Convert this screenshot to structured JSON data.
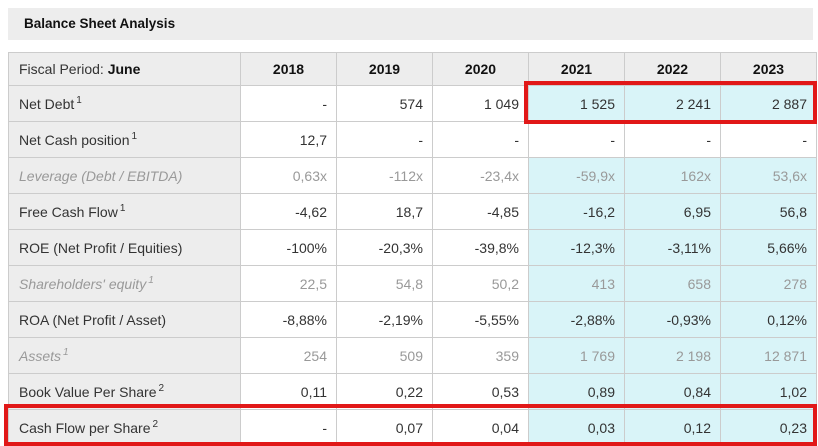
{
  "title": "Balance Sheet Analysis",
  "table": {
    "fiscal_period_label": "Fiscal Period:",
    "fiscal_period_value": "June",
    "columns": [
      "2018",
      "2019",
      "2020",
      "2021",
      "2022",
      "2023"
    ],
    "estimate_columns": [
      "2021",
      "2022",
      "2023"
    ],
    "rows": [
      {
        "label": "Net Debt",
        "sup": "1",
        "italic": false,
        "estimates": true,
        "values": [
          "-",
          "574",
          "1 049",
          "1 525",
          "2 241",
          "2 887"
        ]
      },
      {
        "label": "Net Cash position",
        "sup": "1",
        "italic": false,
        "estimates": false,
        "values": [
          "12,7",
          "-",
          "-",
          "-",
          "-",
          "-"
        ]
      },
      {
        "label": "Leverage (Debt / EBITDA)",
        "sup": "",
        "italic": true,
        "estimates": true,
        "values": [
          "0,63x",
          "-112x",
          "-23,4x",
          "-59,9x",
          "162x",
          "53,6x"
        ]
      },
      {
        "label": "Free Cash Flow",
        "sup": "1",
        "italic": false,
        "estimates": true,
        "values": [
          "-4,62",
          "18,7",
          "-4,85",
          "-16,2",
          "6,95",
          "56,8"
        ]
      },
      {
        "label": "ROE (Net Profit / Equities)",
        "sup": "",
        "italic": false,
        "estimates": true,
        "values": [
          "-100%",
          "-20,3%",
          "-39,8%",
          "-12,3%",
          "-3,11%",
          "5,66%"
        ]
      },
      {
        "label": "Shareholders' equity",
        "sup": "1",
        "italic": true,
        "estimates": true,
        "values": [
          "22,5",
          "54,8",
          "50,2",
          "413",
          "658",
          "278"
        ]
      },
      {
        "label": "ROA (Net Profit / Asset)",
        "sup": "",
        "italic": false,
        "estimates": true,
        "values": [
          "-8,88%",
          "-2,19%",
          "-5,55%",
          "-2,88%",
          "-0,93%",
          "0,12%"
        ]
      },
      {
        "label": "Assets",
        "sup": "1",
        "italic": true,
        "estimates": true,
        "values": [
          "254",
          "509",
          "359",
          "1 769",
          "2 198",
          "12 871"
        ]
      },
      {
        "label": "Book Value Per Share",
        "sup": "2",
        "italic": false,
        "estimates": true,
        "values": [
          "0,11",
          "0,22",
          "0,53",
          "0,89",
          "0,84",
          "1,02"
        ]
      },
      {
        "label": "Cash Flow per Share",
        "sup": "2",
        "italic": false,
        "estimates": true,
        "values": [
          "-",
          "0,07",
          "0,04",
          "0,03",
          "0,12",
          "0,23"
        ]
      }
    ],
    "highlights": [
      {
        "name": "net-debt-estimates",
        "scope": "cells-2021-2023-of-net-debt-row"
      },
      {
        "name": "cash-flow-per-share-row",
        "scope": "entire-row"
      }
    ],
    "colors": {
      "header_bg": "#ededed",
      "label_bg": "#ededed",
      "estimate_bg": "#d9f4f8",
      "border": "#cccccc",
      "text": "#333333",
      "muted_text": "#999999",
      "highlight_red": "#e11818",
      "title_text": "#111111"
    }
  }
}
